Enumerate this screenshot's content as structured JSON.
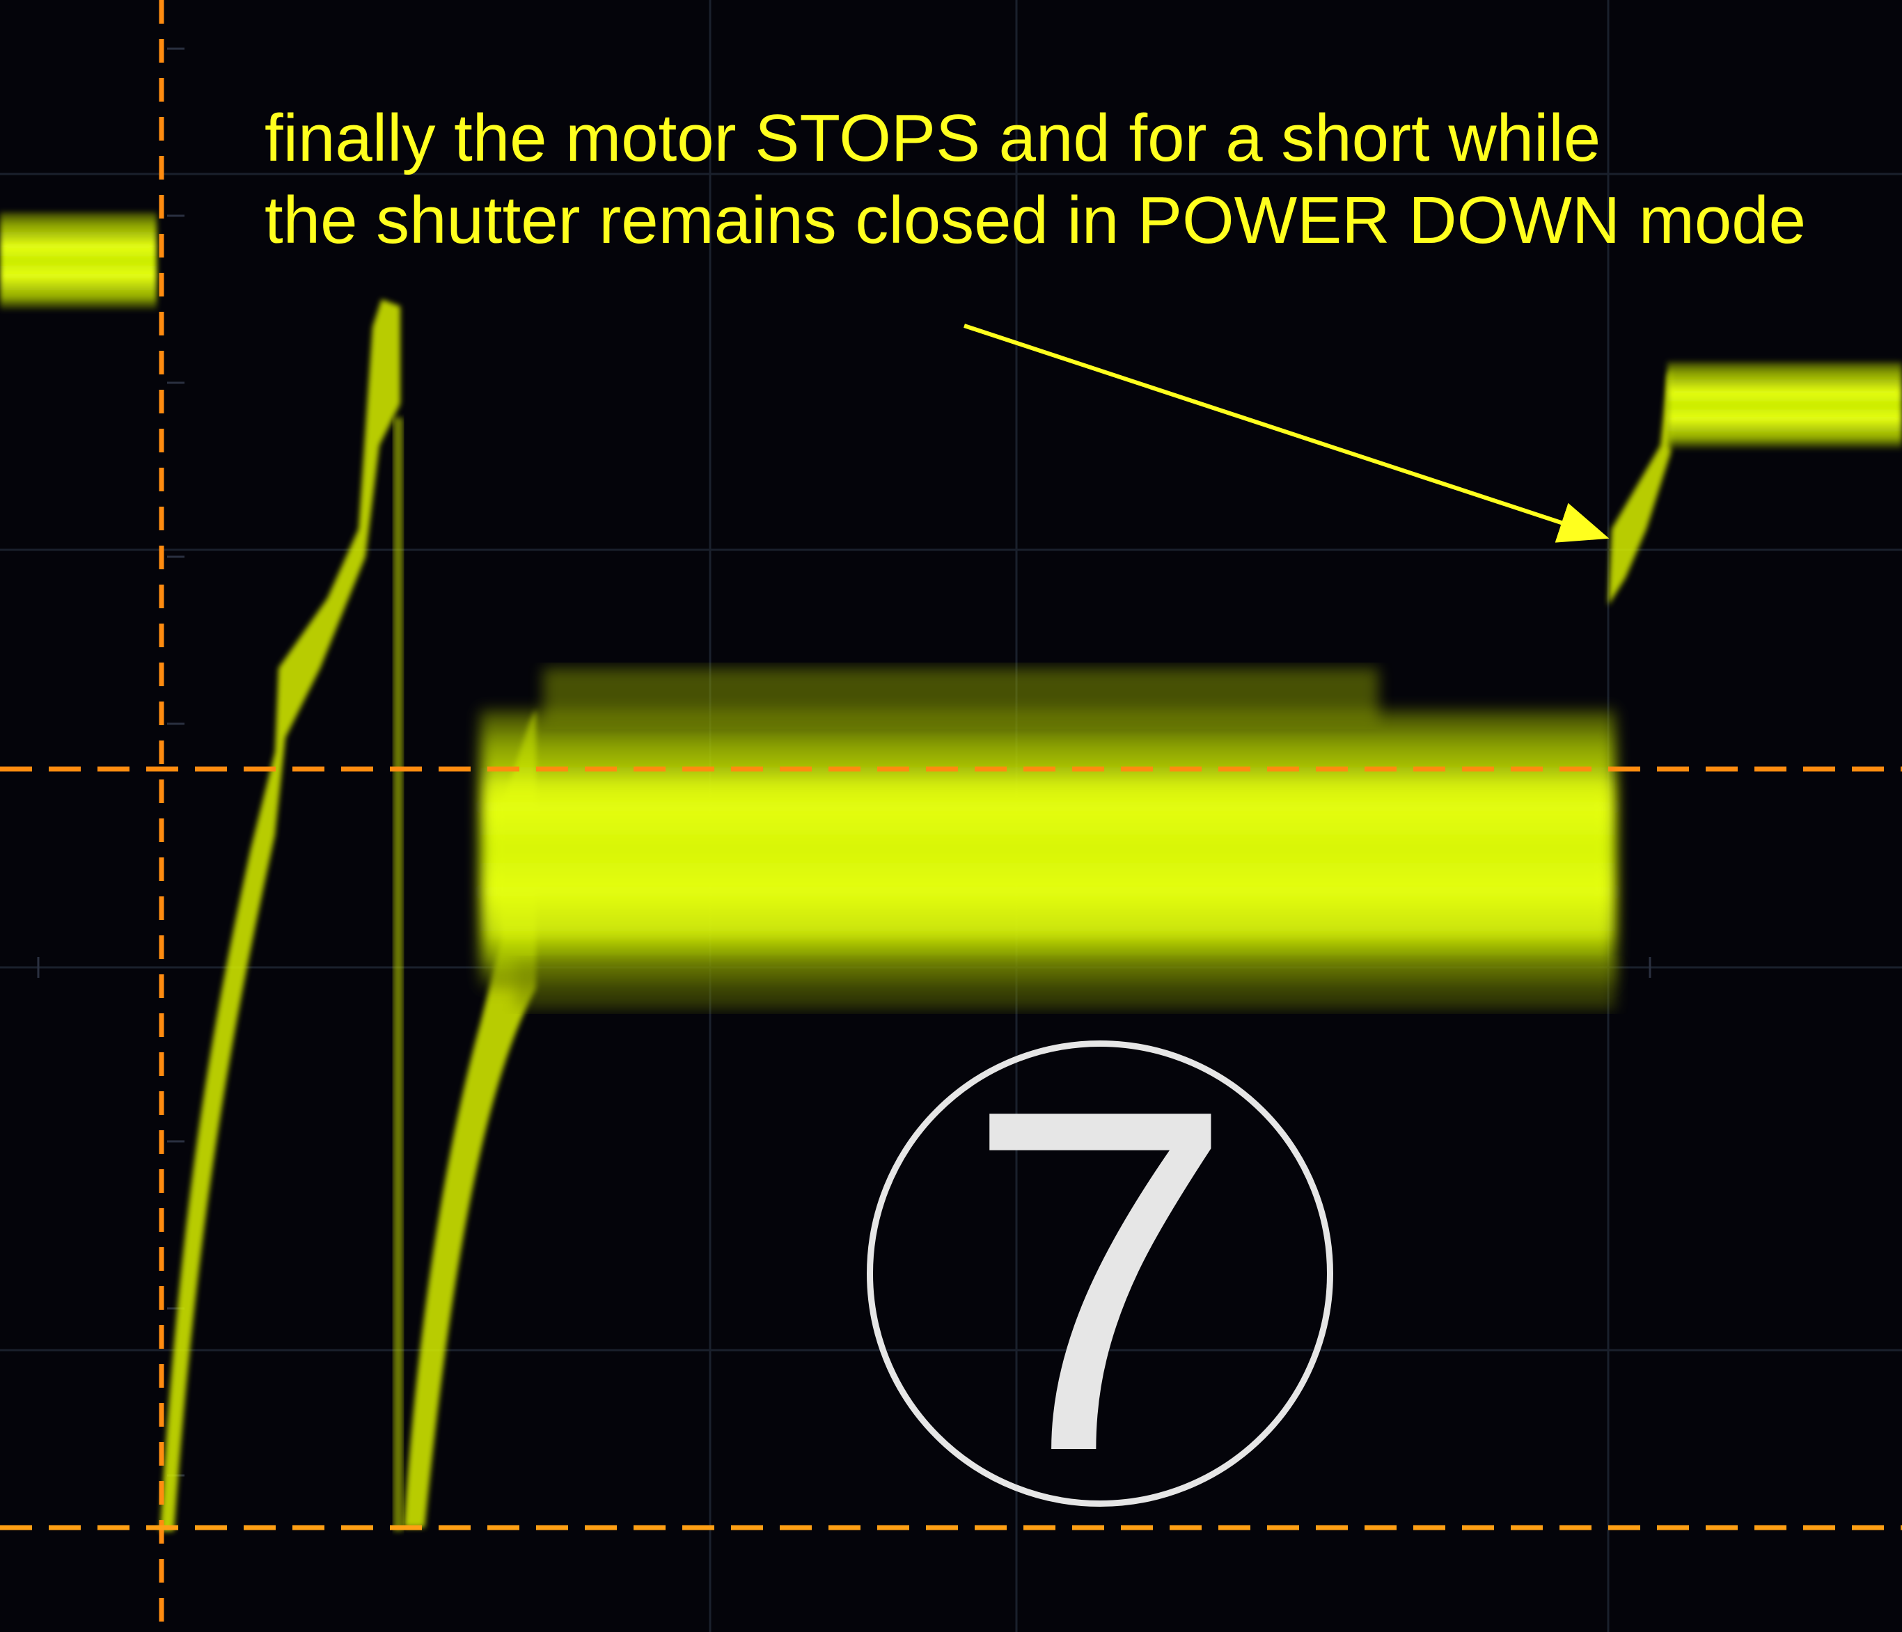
{
  "annotation": {
    "line1": "finally the motor STOPS and for a short while",
    "line2": "the shutter remains closed in POWER DOWN mode"
  },
  "step_badge": {
    "number": "7"
  },
  "colors": {
    "background": "#04040a",
    "trace": "#e8ff1a",
    "cursor": "#ff8c10",
    "annotation_text": "#ffff1e",
    "badge": "#e6e6e6",
    "grid": "#1c2230"
  },
  "icons": {
    "arrow": "arrow-pointer-icon",
    "badge": "circled-number-icon"
  }
}
